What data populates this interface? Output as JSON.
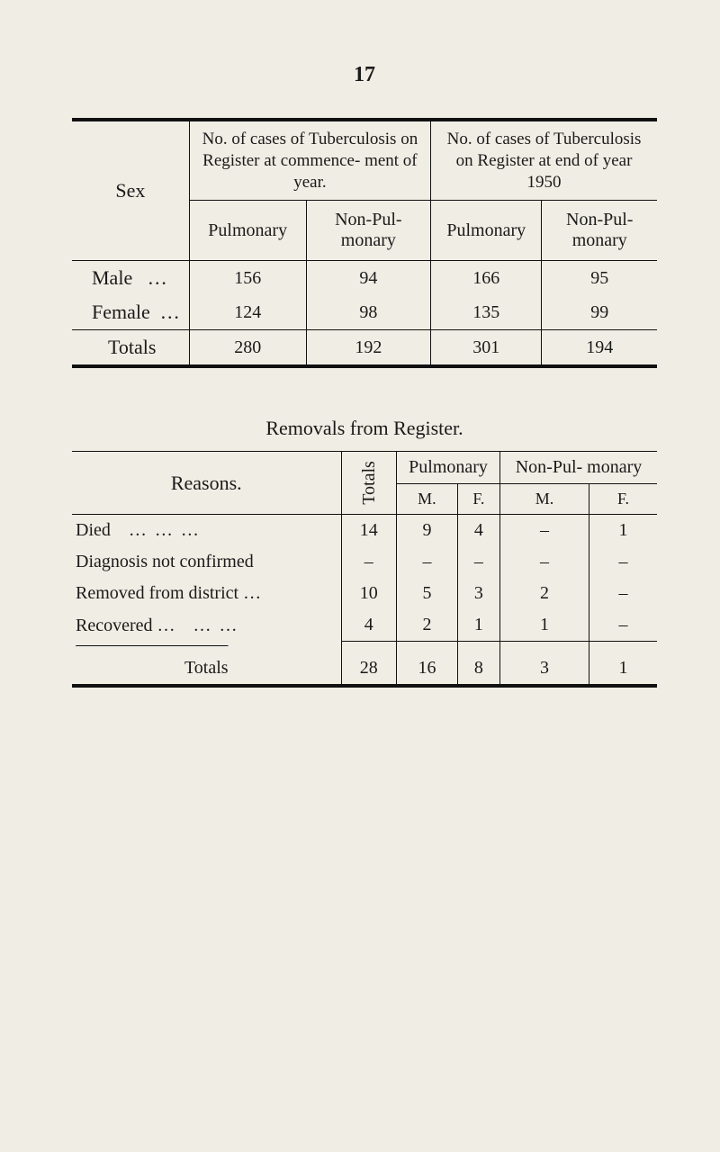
{
  "page_number": "17",
  "table1": {
    "top_rule_weight": 4,
    "sex_label": "Sex",
    "group_left": "No. of cases of Tuberculosis on Register at commence- ment of year.",
    "group_right": "No. of cases of Tuberculosis on Register at end of year 1950",
    "sub_pulmonary": "Pulmonary",
    "sub_nonpul": "Non-Pul- monary",
    "rows": [
      {
        "label": "Male",
        "dots": "…",
        "c1": "156",
        "c2": "94",
        "c3": "166",
        "c4": "95"
      },
      {
        "label": "Female",
        "dots": "…",
        "c1": "124",
        "c2": "98",
        "c3": "135",
        "c4": "99"
      }
    ],
    "totals": {
      "label": "Totals",
      "c1": "280",
      "c2": "192",
      "c3": "301",
      "c4": "194"
    },
    "bottom_rule_weight": 4
  },
  "subtitle": "Removals from Register.",
  "table2": {
    "reasons_label": "Reasons.",
    "totals_header": "Totals",
    "pulmonary_label": "Pulmonary",
    "nonpul_label": "Non-Pul- monary",
    "m_label": "M.",
    "f_label": "F.",
    "rows": [
      {
        "label": "Died",
        "dots": "…   …   …",
        "tot": "14",
        "pm": "9",
        "pf": "4",
        "nm": "–",
        "nf": "1"
      },
      {
        "label": "Diagnosis not confirmed",
        "dots": "",
        "tot": "–",
        "pm": "–",
        "pf": "–",
        "nm": "–",
        "nf": "–"
      },
      {
        "label": "Removed from district",
        "dots": "…",
        "tot": "10",
        "pm": "5",
        "pf": "3",
        "nm": "2",
        "nf": "–"
      },
      {
        "label": "Recovered …",
        "dots": "…   …",
        "tot": "4",
        "pm": "2",
        "pf": "1",
        "nm": "1",
        "nf": "–"
      }
    ],
    "totals": {
      "label": "Totals",
      "tot": "28",
      "pm": "16",
      "pf": "8",
      "nm": "3",
      "nf": "1"
    }
  }
}
